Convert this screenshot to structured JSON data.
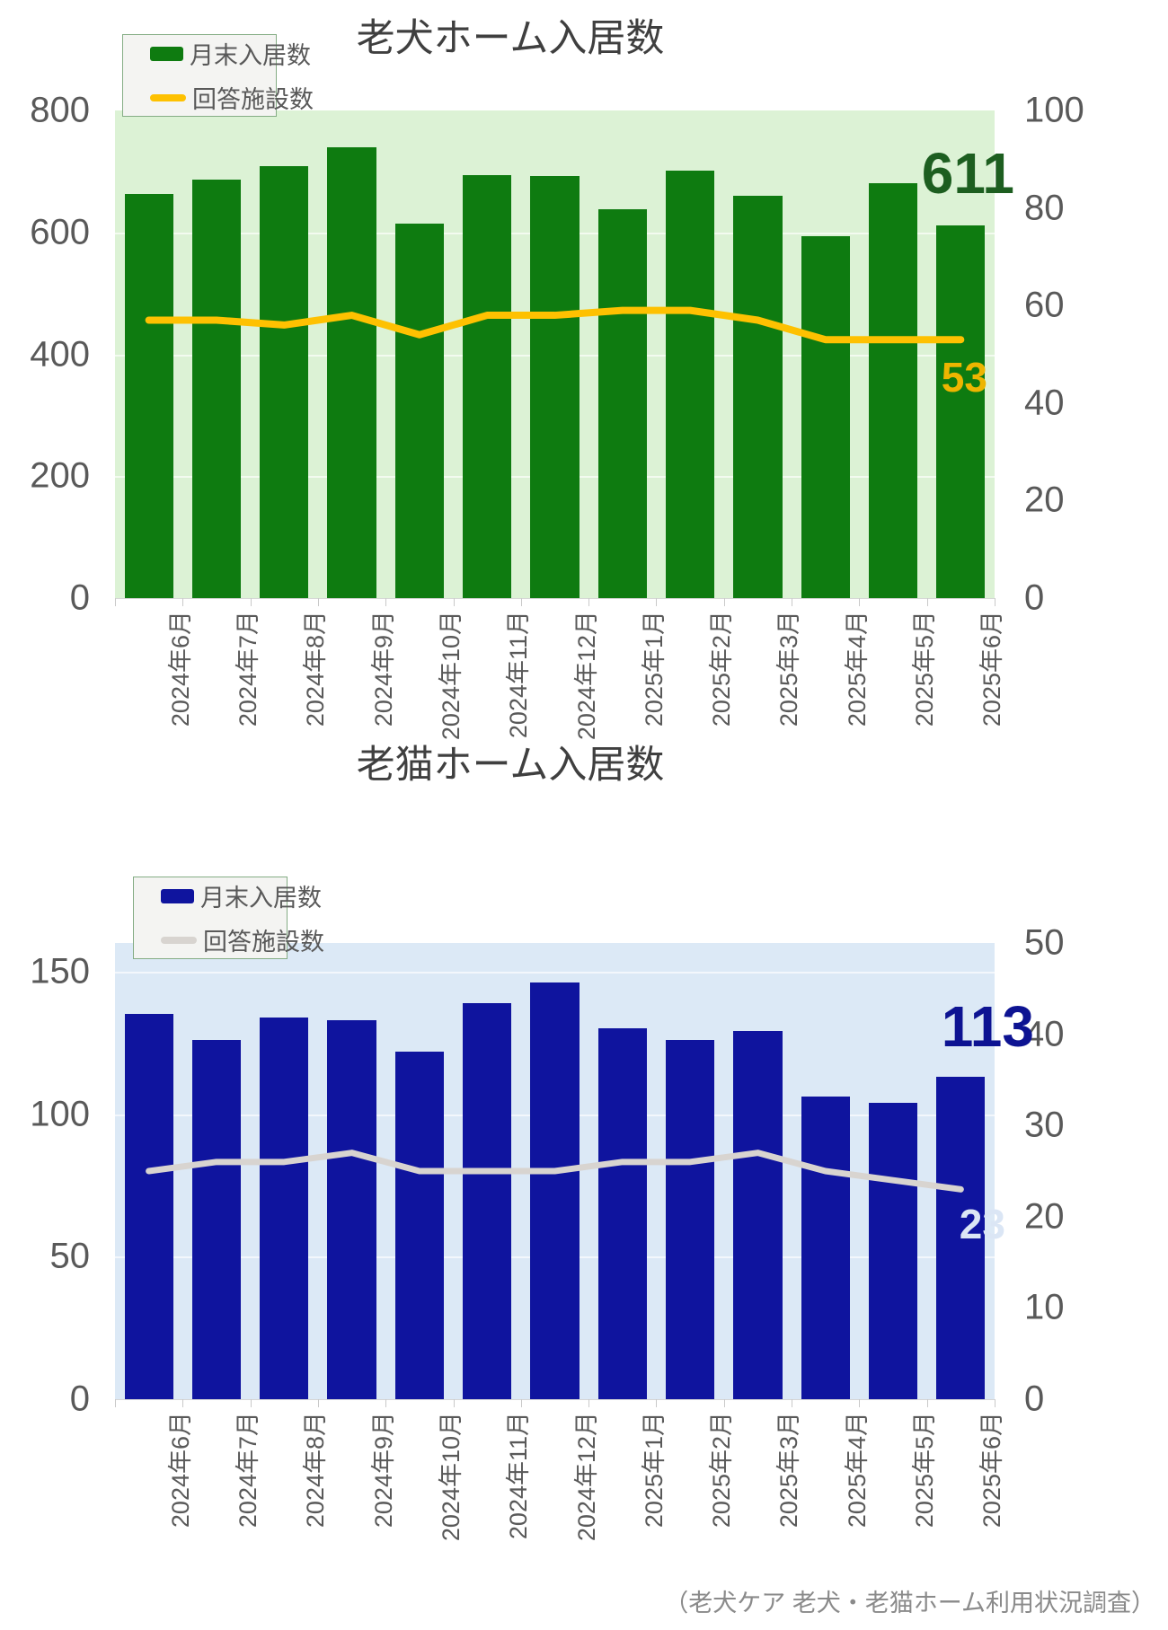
{
  "source_note": "（老犬ケア 老犬・老猫ホーム利用状況調査）",
  "charts": [
    {
      "title": "老犬ホーム入居数",
      "legend": {
        "bars": "月末入居数",
        "line": "回答施設数"
      },
      "colors": {
        "bar": "#0e7b10",
        "bar_label": "#1d5e20",
        "line": "#fec101",
        "line_label": "#edb500",
        "plot_bg": "#dcf2d5",
        "legend_border": "#85ad85"
      },
      "chart_data": {
        "type": "bar+line",
        "categories": [
          "2024年6月",
          "2024年7月",
          "2024年8月",
          "2024年9月",
          "2024年10月",
          "2024年11月",
          "2024年12月",
          "2025年1月",
          "2025年2月",
          "2025年3月",
          "2025年4月",
          "2025年5月",
          "2025年6月"
        ],
        "series": [
          {
            "name": "月末入居数",
            "kind": "bar",
            "axis": "left",
            "values": [
              663,
              687,
              709,
              740,
              615,
              694,
              692,
              638,
              702,
              660,
              594,
              681,
              611
            ]
          },
          {
            "name": "回答施設数",
            "kind": "line",
            "axis": "right",
            "values": [
              57,
              57,
              56,
              58,
              54,
              58,
              58,
              59,
              59,
              57,
              53,
              53,
              53
            ]
          }
        ],
        "left_axis": {
          "ticks": [
            0,
            200,
            400,
            600,
            800
          ],
          "max": 800
        },
        "right_axis": {
          "ticks": [
            0,
            20,
            40,
            60,
            80,
            100
          ],
          "max": 100
        },
        "end_labels": {
          "bar": "611",
          "line": "53"
        },
        "grid": true,
        "legend_position": "top-left"
      }
    },
    {
      "title": "老猫ホーム入居数",
      "legend": {
        "bars": "月末入居数",
        "line": "回答施設数"
      },
      "colors": {
        "bar": "#0f149e",
        "bar_label": "#0d1392",
        "line": "#d8d4d0",
        "line_label": "#dbe6f5",
        "plot_bg": "#dce9f6",
        "legend_border": "#85ad85"
      },
      "chart_data": {
        "type": "bar+line",
        "categories": [
          "2024年6月",
          "2024年7月",
          "2024年8月",
          "2024年9月",
          "2024年10月",
          "2024年11月",
          "2024年12月",
          "2025年1月",
          "2025年2月",
          "2025年3月",
          "2025年4月",
          "2025年5月",
          "2025年6月"
        ],
        "series": [
          {
            "name": "月末入居数",
            "kind": "bar",
            "axis": "left",
            "values": [
              135,
              126,
              134,
              133,
              122,
              139,
              146,
              130,
              126,
              129,
              106,
              104,
              113
            ]
          },
          {
            "name": "回答施設数",
            "kind": "line",
            "axis": "right",
            "values": [
              25,
              26,
              26,
              27,
              25,
              25,
              25,
              26,
              26,
              27,
              25,
              24,
              23
            ]
          }
        ],
        "left_axis": {
          "ticks": [
            0,
            50,
            100,
            150
          ],
          "max": 160
        },
        "right_axis": {
          "ticks": [
            0,
            10,
            20,
            30,
            40,
            50
          ],
          "max": 50
        },
        "end_labels": {
          "bar": "113",
          "line": "23"
        },
        "grid": true,
        "legend_position": "top-left"
      }
    }
  ]
}
